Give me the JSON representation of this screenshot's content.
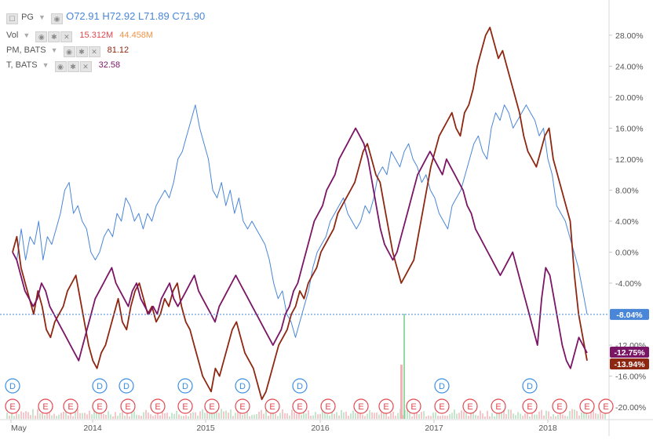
{
  "legend": {
    "main": {
      "symbol": "PG",
      "open_label": "O",
      "open": "72.91",
      "high_label": "H",
      "high": "72.92",
      "low_label": "L",
      "low": "71.89",
      "close_label": "C",
      "close": "71.90"
    },
    "vol": {
      "label": "Vol",
      "v1": "15.312M",
      "v2": "44.458M"
    },
    "pm": {
      "label": "PM, BATS",
      "value": "81.12"
    },
    "t": {
      "label": "T, BATS",
      "value": "32.58"
    }
  },
  "chart_data": {
    "type": "line",
    "x_ticks": [
      "May",
      "2014",
      "2015",
      "2016",
      "2017",
      "2018"
    ],
    "y_ticks": [
      "28.00%",
      "24.00%",
      "20.00%",
      "16.00%",
      "12.00%",
      "8.00%",
      "4.00%",
      "0.00%",
      "-4.00%",
      "-12.00%",
      "-16.00%",
      "-20.00%"
    ],
    "ylim": [
      -21,
      31
    ],
    "series": [
      {
        "name": "PG",
        "color": "#4a86d8",
        "last_label": "-8.04%",
        "values": [
          0,
          -1,
          3,
          -1,
          2,
          1,
          4,
          -1,
          2,
          1,
          3,
          5,
          8,
          9,
          5,
          6,
          4,
          3,
          0,
          -1,
          0,
          2,
          3,
          2,
          5,
          4,
          7,
          6,
          4,
          5,
          3,
          5,
          4,
          6,
          7,
          8,
          7,
          9,
          12,
          13,
          15,
          17,
          19,
          16,
          14,
          12,
          8,
          7,
          9,
          6,
          8,
          5,
          7,
          4,
          3,
          4,
          3,
          2,
          1,
          -1,
          -4,
          -6,
          -5,
          -8,
          -9,
          -11,
          -9,
          -7,
          -5,
          -2,
          0,
          1,
          2,
          4,
          5,
          6,
          7,
          5,
          4,
          3,
          4,
          6,
          5,
          7,
          10,
          11,
          10,
          13,
          12,
          11,
          13,
          14,
          12,
          11,
          9,
          10,
          8,
          7,
          5,
          4,
          3,
          6,
          7,
          8,
          10,
          12,
          14,
          15,
          13,
          12,
          16,
          18,
          17,
          19,
          18,
          16,
          17,
          18,
          19,
          18,
          17,
          15,
          16,
          12,
          10,
          6,
          5,
          4,
          2,
          0,
          -2,
          -5,
          -8
        ]
      },
      {
        "name": "PM",
        "color": "#8e2712",
        "last_label": "-13.94%",
        "values": [
          0,
          2,
          -2,
          -4,
          -6,
          -8,
          -5,
          -7,
          -10,
          -11,
          -9,
          -8,
          -7,
          -5,
          -4,
          -3,
          -6,
          -9,
          -12,
          -14,
          -15,
          -13,
          -12,
          -10,
          -8,
          -6,
          -9,
          -10,
          -7,
          -5,
          -4,
          -6,
          -8,
          -7,
          -9,
          -8,
          -6,
          -7,
          -5,
          -4,
          -7,
          -9,
          -10,
          -12,
          -14,
          -16,
          -17,
          -18,
          -15,
          -16,
          -14,
          -12,
          -10,
          -9,
          -11,
          -13,
          -14,
          -15,
          -17,
          -19,
          -18,
          -16,
          -14,
          -12,
          -11,
          -10,
          -8,
          -7,
          -5,
          -6,
          -4,
          -3,
          -2,
          0,
          1,
          2,
          3,
          5,
          6,
          7,
          8,
          9,
          11,
          13,
          14,
          12,
          10,
          9,
          6,
          3,
          0,
          -2,
          -4,
          -3,
          -2,
          -1,
          2,
          5,
          8,
          11,
          13,
          15,
          16,
          17,
          18,
          16,
          15,
          18,
          19,
          21,
          24,
          26,
          28,
          29,
          27,
          25,
          26,
          24,
          22,
          20,
          18,
          15,
          13,
          12,
          11,
          13,
          15,
          16,
          12,
          10,
          8,
          6,
          4,
          -3,
          -8,
          -11,
          -14
        ]
      },
      {
        "name": "T",
        "color": "#7b1566",
        "last_label": "-12.75%",
        "values": [
          0,
          -1,
          -3,
          -5,
          -6,
          -7,
          -6,
          -4,
          -5,
          -7,
          -8,
          -9,
          -10,
          -11,
          -12,
          -13,
          -14,
          -12,
          -10,
          -8,
          -6,
          -5,
          -4,
          -3,
          -2,
          -4,
          -5,
          -6,
          -7,
          -5,
          -4,
          -6,
          -7,
          -8,
          -7,
          -8,
          -6,
          -5,
          -4,
          -6,
          -7,
          -6,
          -5,
          -4,
          -3,
          -5,
          -6,
          -7,
          -8,
          -9,
          -7,
          -6,
          -5,
          -4,
          -3,
          -4,
          -5,
          -6,
          -7,
          -8,
          -9,
          -10,
          -11,
          -12,
          -11,
          -10,
          -8,
          -7,
          -5,
          -4,
          -2,
          0,
          2,
          4,
          5,
          6,
          8,
          9,
          10,
          12,
          13,
          14,
          15,
          16,
          15,
          14,
          12,
          9,
          6,
          3,
          1,
          0,
          -1,
          0,
          2,
          4,
          6,
          8,
          10,
          11,
          12,
          13,
          12,
          11,
          10,
          12,
          11,
          10,
          9,
          8,
          6,
          5,
          3,
          2,
          1,
          0,
          -1,
          -2,
          -3,
          -2,
          -1,
          0,
          -2,
          -4,
          -6,
          -8,
          -10,
          -12,
          -6,
          -2,
          -3,
          -6,
          -9,
          -12,
          -14,
          -15,
          -13,
          -11,
          -12,
          -13
        ]
      }
    ],
    "volume_marker": {
      "color": "#7dcf8d"
    },
    "dividends": {
      "label": "D",
      "count": 8
    },
    "earnings": {
      "label": "E",
      "count": 22
    }
  }
}
